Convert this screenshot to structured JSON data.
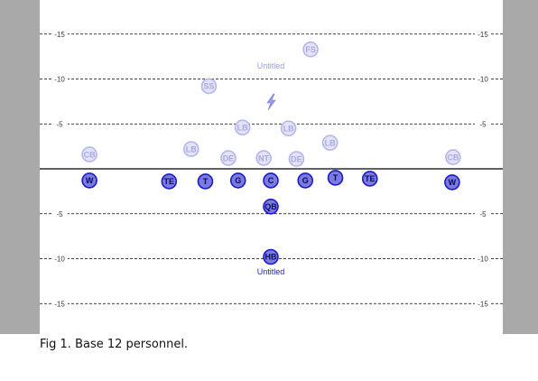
{
  "caption": "Fig 1. Base 12 personnel.",
  "field": {
    "yard_markers": [
      15,
      10,
      5,
      -5,
      -10,
      -15
    ],
    "defense_formation_label": "Untitled",
    "offense_formation_label": "Untitled",
    "offense_color": "#1a1acc",
    "defense_color": "#9999ee",
    "sideline_color": "#a9a9a9"
  },
  "defense": [
    {
      "label": "FS",
      "x": 4.5,
      "y": 13.3
    },
    {
      "label": "SS",
      "x": -7.0,
      "y": 9.2
    },
    {
      "label": "LB",
      "x": -3.2,
      "y": 4.6
    },
    {
      "label": "LB",
      "x": 2.0,
      "y": 4.5
    },
    {
      "label": "LB",
      "x": -9.0,
      "y": 2.2
    },
    {
      "label": "LB",
      "x": 6.7,
      "y": 2.9
    },
    {
      "label": "DE",
      "x": -4.8,
      "y": 1.2
    },
    {
      "label": "NT",
      "x": -0.8,
      "y": 1.2
    },
    {
      "label": "DE",
      "x": 2.9,
      "y": 1.1
    },
    {
      "label": "CB",
      "x": -20.5,
      "y": 1.6
    },
    {
      "label": "CB",
      "x": 20.6,
      "y": 1.3
    }
  ],
  "offense": [
    {
      "label": "W",
      "x": -20.5,
      "y": -1.3
    },
    {
      "label": "TE",
      "x": -11.5,
      "y": -1.4
    },
    {
      "label": "T",
      "x": -7.4,
      "y": -1.4
    },
    {
      "label": "G",
      "x": -3.7,
      "y": -1.3
    },
    {
      "label": "C",
      "x": 0.0,
      "y": -1.3
    },
    {
      "label": "G",
      "x": 3.9,
      "y": -1.3
    },
    {
      "label": "T",
      "x": 7.3,
      "y": -1.0
    },
    {
      "label": "TE",
      "x": 11.2,
      "y": -1.1
    },
    {
      "label": "W",
      "x": 20.5,
      "y": -1.5
    },
    {
      "label": "QB",
      "x": 0.0,
      "y": -4.2
    },
    {
      "label": "HB",
      "x": 0.0,
      "y": -9.8
    }
  ]
}
